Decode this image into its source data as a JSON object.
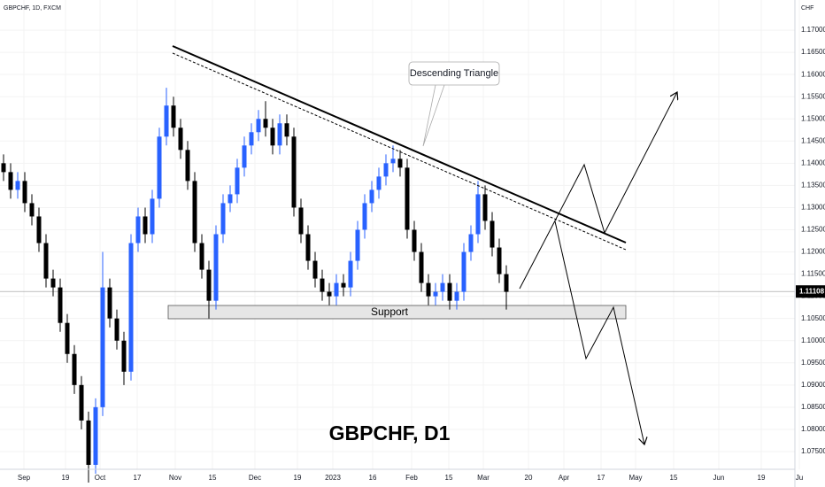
{
  "chart_data": {
    "type": "candlestick",
    "title": "GBPCHF, 1D, FXCM",
    "axis_unit": "CHF",
    "watermark": "GBPCHF, D1",
    "annotations": {
      "pattern": "Descending Triangle",
      "zone": "Support"
    },
    "up_color": "#2962ff",
    "down_color": "#000000",
    "ylim": [
      1.071,
      1.1768
    ],
    "yticks": [
      {
        "value": 1.075,
        "label": "1.07500"
      },
      {
        "value": 1.08,
        "label": "1.08000"
      },
      {
        "value": 1.085,
        "label": "1.08500"
      },
      {
        "value": 1.09,
        "label": "1.09000"
      },
      {
        "value": 1.095,
        "label": "1.09500"
      },
      {
        "value": 1.1,
        "label": "1.10000"
      },
      {
        "value": 1.105,
        "label": "1.10500"
      },
      {
        "value": 1.11,
        "label": "1.11000"
      },
      {
        "value": 1.115,
        "label": "1.11500"
      },
      {
        "value": 1.12,
        "label": "1.12000"
      },
      {
        "value": 1.125,
        "label": "1.12500"
      },
      {
        "value": 1.13,
        "label": "1.13000"
      },
      {
        "value": 1.135,
        "label": "1.13500"
      },
      {
        "value": 1.14,
        "label": "1.14000"
      },
      {
        "value": 1.145,
        "label": "1.14500"
      },
      {
        "value": 1.15,
        "label": "1.15000"
      },
      {
        "value": 1.155,
        "label": "1.15500"
      },
      {
        "value": 1.16,
        "label": "1.16000"
      },
      {
        "value": 1.165,
        "label": "1.16500"
      },
      {
        "value": 1.17,
        "label": "1.17000"
      }
    ],
    "last_price": {
      "value": 1.11108,
      "label": "1.11108"
    },
    "xlabels": [
      "Sep",
      "19",
      "Oct",
      "17",
      "Nov",
      "15",
      "Dec",
      "19",
      "2023",
      "16",
      "Feb",
      "15",
      "Mar",
      "20",
      "Apr",
      "17",
      "May",
      "15",
      "Jun",
      "19",
      "Ju"
    ],
    "candles": [
      [
        1.14,
        1.142,
        1.136,
        1.138
      ],
      [
        1.138,
        1.14,
        1.132,
        1.134
      ],
      [
        1.134,
        1.138,
        1.132,
        1.136
      ],
      [
        1.136,
        1.138,
        1.129,
        1.131
      ],
      [
        1.131,
        1.133,
        1.126,
        1.128
      ],
      [
        1.128,
        1.13,
        1.12,
        1.122
      ],
      [
        1.122,
        1.124,
        1.112,
        1.114
      ],
      [
        1.114,
        1.116,
        1.11,
        1.112
      ],
      [
        1.112,
        1.114,
        1.102,
        1.104
      ],
      [
        1.104,
        1.106,
        1.095,
        1.097
      ],
      [
        1.097,
        1.099,
        1.088,
        1.09
      ],
      [
        1.09,
        1.092,
        1.08,
        1.082
      ],
      [
        1.082,
        1.084,
        1.068,
        1.072
      ],
      [
        1.072,
        1.087,
        1.07,
        1.085
      ],
      [
        1.085,
        1.12,
        1.083,
        1.112
      ],
      [
        1.112,
        1.114,
        1.103,
        1.105
      ],
      [
        1.105,
        1.107,
        1.098,
        1.1
      ],
      [
        1.1,
        1.102,
        1.09,
        1.093
      ],
      [
        1.093,
        1.124,
        1.091,
        1.122
      ],
      [
        1.122,
        1.13,
        1.12,
        1.128
      ],
      [
        1.128,
        1.13,
        1.122,
        1.124
      ],
      [
        1.124,
        1.134,
        1.122,
        1.132
      ],
      [
        1.132,
        1.148,
        1.13,
        1.146
      ],
      [
        1.146,
        1.157,
        1.144,
        1.153
      ],
      [
        1.153,
        1.155,
        1.146,
        1.148
      ],
      [
        1.148,
        1.15,
        1.141,
        1.143
      ],
      [
        1.143,
        1.145,
        1.134,
        1.136
      ],
      [
        1.136,
        1.138,
        1.12,
        1.122
      ],
      [
        1.122,
        1.124,
        1.114,
        1.116
      ],
      [
        1.116,
        1.118,
        1.105,
        1.109
      ],
      [
        1.109,
        1.126,
        1.107,
        1.124
      ],
      [
        1.124,
        1.133,
        1.122,
        1.131
      ],
      [
        1.131,
        1.135,
        1.129,
        1.133
      ],
      [
        1.133,
        1.141,
        1.131,
        1.139
      ],
      [
        1.139,
        1.146,
        1.137,
        1.144
      ],
      [
        1.144,
        1.149,
        1.142,
        1.147
      ],
      [
        1.147,
        1.152,
        1.145,
        1.15
      ],
      [
        1.15,
        1.154,
        1.146,
        1.148
      ],
      [
        1.148,
        1.15,
        1.142,
        1.144
      ],
      [
        1.144,
        1.151,
        1.142,
        1.149
      ],
      [
        1.149,
        1.151,
        1.144,
        1.146
      ],
      [
        1.146,
        1.148,
        1.128,
        1.13
      ],
      [
        1.13,
        1.132,
        1.122,
        1.124
      ],
      [
        1.124,
        1.126,
        1.116,
        1.118
      ],
      [
        1.118,
        1.12,
        1.112,
        1.114
      ],
      [
        1.114,
        1.116,
        1.109,
        1.111
      ],
      [
        1.111,
        1.113,
        1.108,
        1.11
      ],
      [
        1.11,
        1.115,
        1.108,
        1.113
      ],
      [
        1.113,
        1.115,
        1.11,
        1.112
      ],
      [
        1.112,
        1.12,
        1.11,
        1.118
      ],
      [
        1.118,
        1.127,
        1.116,
        1.125
      ],
      [
        1.125,
        1.133,
        1.123,
        1.131
      ],
      [
        1.131,
        1.136,
        1.129,
        1.134
      ],
      [
        1.134,
        1.139,
        1.132,
        1.137
      ],
      [
        1.137,
        1.142,
        1.135,
        1.14
      ],
      [
        1.14,
        1.144,
        1.138,
        1.141
      ],
      [
        1.141,
        1.143,
        1.137,
        1.139
      ],
      [
        1.139,
        1.141,
        1.123,
        1.125
      ],
      [
        1.125,
        1.127,
        1.118,
        1.12
      ],
      [
        1.12,
        1.122,
        1.111,
        1.113
      ],
      [
        1.113,
        1.115,
        1.108,
        1.11
      ],
      [
        1.11,
        1.113,
        1.108,
        1.111
      ],
      [
        1.111,
        1.115,
        1.109,
        1.113
      ],
      [
        1.113,
        1.115,
        1.107,
        1.109
      ],
      [
        1.109,
        1.113,
        1.107,
        1.111
      ],
      [
        1.111,
        1.122,
        1.109,
        1.12
      ],
      [
        1.12,
        1.126,
        1.118,
        1.124
      ],
      [
        1.124,
        1.136,
        1.122,
        1.133
      ],
      [
        1.133,
        1.135,
        1.125,
        1.127
      ],
      [
        1.127,
        1.129,
        1.119,
        1.121
      ],
      [
        1.121,
        1.123,
        1.113,
        1.115
      ],
      [
        1.115,
        1.117,
        1.107,
        1.111
      ]
    ]
  }
}
